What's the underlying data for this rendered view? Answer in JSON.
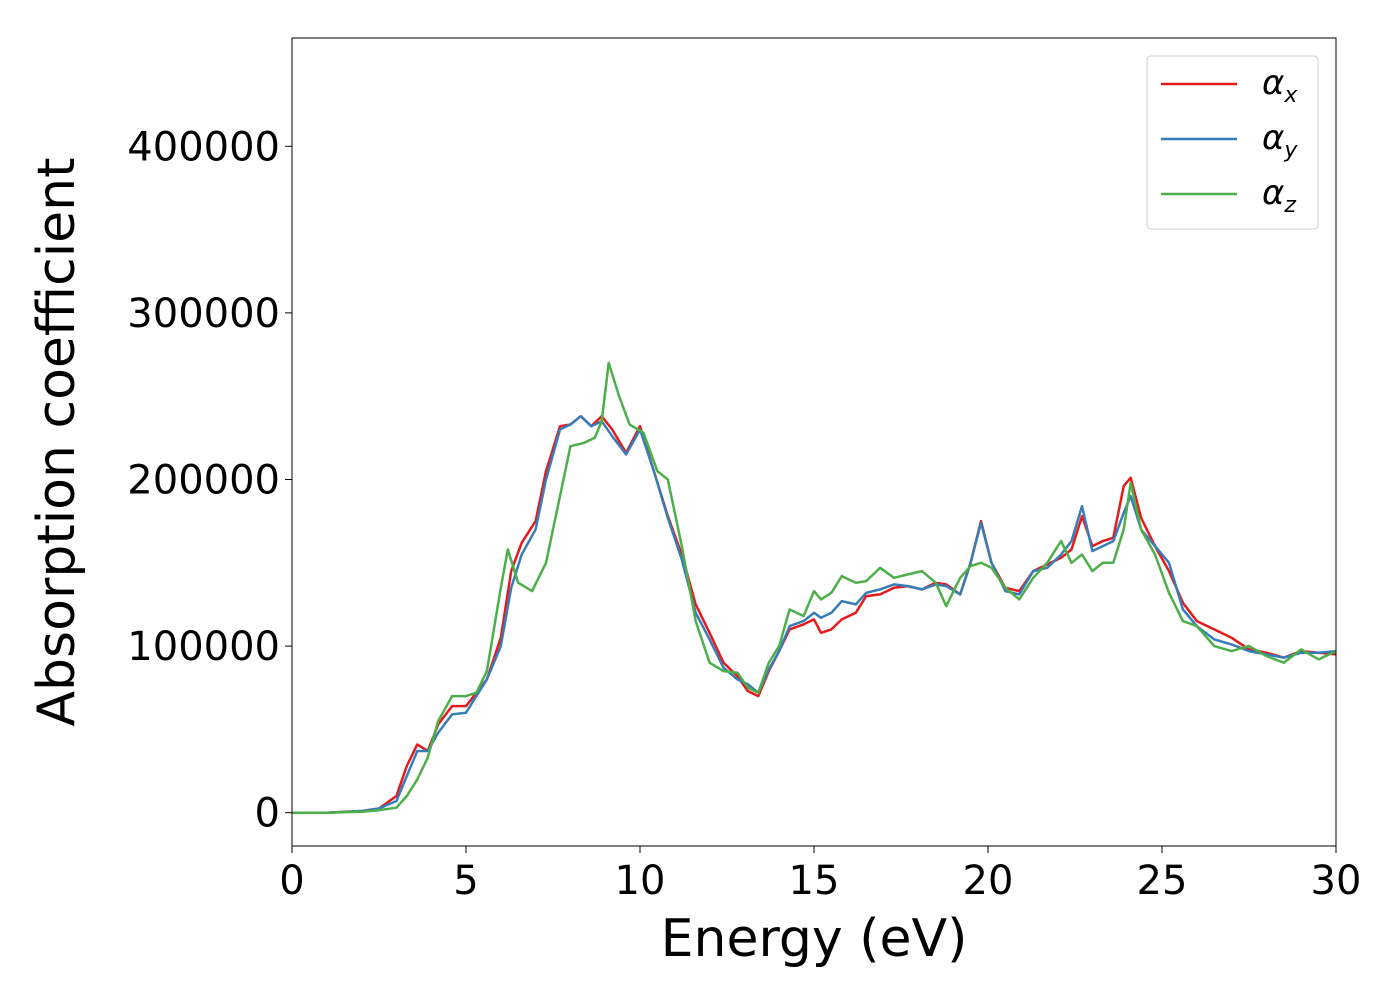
{
  "chart_data": {
    "type": "line",
    "title": "",
    "xlabel": "Energy (eV)",
    "ylabel": "Absorption coefficient",
    "xlim": [
      0,
      30
    ],
    "ylim": [
      -20000,
      465000
    ],
    "x_ticks": [
      0,
      5,
      10,
      15,
      20,
      25,
      30
    ],
    "y_ticks": [
      0,
      100000,
      200000,
      300000,
      400000
    ],
    "grid": false,
    "legend_position": "top-right",
    "series": [
      {
        "name": "αx",
        "name_base": "α",
        "name_sub": "x",
        "color": "#e41a1c",
        "points": [
          [
            0,
            0
          ],
          [
            1,
            0
          ],
          [
            2,
            1000
          ],
          [
            2.5,
            2500
          ],
          [
            3,
            10000
          ],
          [
            3.3,
            28000
          ],
          [
            3.6,
            41000
          ],
          [
            3.9,
            37000
          ],
          [
            4.2,
            53000
          ],
          [
            4.6,
            64000
          ],
          [
            5.0,
            64000
          ],
          [
            5.3,
            72000
          ],
          [
            5.6,
            80000
          ],
          [
            6.0,
            105000
          ],
          [
            6.3,
            145000
          ],
          [
            6.6,
            162000
          ],
          [
            7.0,
            175000
          ],
          [
            7.3,
            205000
          ],
          [
            7.7,
            232000
          ],
          [
            8.0,
            233000
          ],
          [
            8.3,
            238000
          ],
          [
            8.6,
            232000
          ],
          [
            8.9,
            238000
          ],
          [
            9.2,
            230000
          ],
          [
            9.6,
            216000
          ],
          [
            10.0,
            232000
          ],
          [
            10.4,
            205000
          ],
          [
            10.8,
            178000
          ],
          [
            11.2,
            155000
          ],
          [
            11.6,
            125000
          ],
          [
            12.0,
            108000
          ],
          [
            12.4,
            90000
          ],
          [
            12.8,
            82000
          ],
          [
            13.1,
            73000
          ],
          [
            13.4,
            70000
          ],
          [
            13.7,
            85000
          ],
          [
            14.0,
            97000
          ],
          [
            14.3,
            110000
          ],
          [
            14.7,
            113000
          ],
          [
            15.0,
            116000
          ],
          [
            15.2,
            108000
          ],
          [
            15.5,
            110000
          ],
          [
            15.8,
            116000
          ],
          [
            16.2,
            120000
          ],
          [
            16.5,
            130000
          ],
          [
            16.9,
            131000
          ],
          [
            17.3,
            135000
          ],
          [
            17.7,
            136000
          ],
          [
            18.1,
            134000
          ],
          [
            18.5,
            138000
          ],
          [
            18.8,
            137000
          ],
          [
            19.2,
            131000
          ],
          [
            19.5,
            150000
          ],
          [
            19.8,
            175000
          ],
          [
            20.1,
            150000
          ],
          [
            20.5,
            135000
          ],
          [
            20.9,
            133000
          ],
          [
            21.3,
            145000
          ],
          [
            21.7,
            149000
          ],
          [
            22.1,
            153000
          ],
          [
            22.4,
            158000
          ],
          [
            22.7,
            178000
          ],
          [
            23.0,
            160000
          ],
          [
            23.3,
            163000
          ],
          [
            23.6,
            165000
          ],
          [
            23.9,
            196000
          ],
          [
            24.1,
            201000
          ],
          [
            24.4,
            177000
          ],
          [
            24.8,
            160000
          ],
          [
            25.2,
            145000
          ],
          [
            25.6,
            126000
          ],
          [
            26.0,
            115000
          ],
          [
            26.5,
            110000
          ],
          [
            27.0,
            105000
          ],
          [
            27.5,
            98000
          ],
          [
            28.0,
            96000
          ],
          [
            28.5,
            93000
          ],
          [
            29.0,
            97000
          ],
          [
            29.5,
            96000
          ],
          [
            30.0,
            95000
          ]
        ]
      },
      {
        "name": "αy",
        "name_base": "α",
        "name_sub": "y",
        "color": "#377eb8",
        "points": [
          [
            0,
            0
          ],
          [
            1,
            0
          ],
          [
            2,
            1000
          ],
          [
            2.5,
            2500
          ],
          [
            3,
            7000
          ],
          [
            3.3,
            22000
          ],
          [
            3.6,
            37000
          ],
          [
            3.9,
            37000
          ],
          [
            4.2,
            48000
          ],
          [
            4.6,
            59000
          ],
          [
            5.0,
            60000
          ],
          [
            5.3,
            70000
          ],
          [
            5.6,
            80000
          ],
          [
            6.0,
            100000
          ],
          [
            6.3,
            135000
          ],
          [
            6.6,
            155000
          ],
          [
            7.0,
            170000
          ],
          [
            7.3,
            200000
          ],
          [
            7.7,
            230000
          ],
          [
            8.0,
            233000
          ],
          [
            8.3,
            238000
          ],
          [
            8.6,
            232000
          ],
          [
            8.9,
            235000
          ],
          [
            9.2,
            226000
          ],
          [
            9.6,
            215000
          ],
          [
            10.0,
            230000
          ],
          [
            10.4,
            205000
          ],
          [
            10.8,
            177000
          ],
          [
            11.2,
            152000
          ],
          [
            11.6,
            120000
          ],
          [
            12.0,
            104000
          ],
          [
            12.4,
            87000
          ],
          [
            12.8,
            80000
          ],
          [
            13.1,
            77000
          ],
          [
            13.4,
            72000
          ],
          [
            13.7,
            86000
          ],
          [
            14.0,
            97000
          ],
          [
            14.3,
            112000
          ],
          [
            14.7,
            115000
          ],
          [
            15.0,
            120000
          ],
          [
            15.2,
            117000
          ],
          [
            15.5,
            120000
          ],
          [
            15.8,
            127000
          ],
          [
            16.2,
            125000
          ],
          [
            16.5,
            132000
          ],
          [
            16.9,
            134000
          ],
          [
            17.3,
            137000
          ],
          [
            17.7,
            136000
          ],
          [
            18.1,
            134000
          ],
          [
            18.5,
            137000
          ],
          [
            18.8,
            136000
          ],
          [
            19.2,
            131000
          ],
          [
            19.5,
            150000
          ],
          [
            19.8,
            174000
          ],
          [
            20.1,
            150000
          ],
          [
            20.5,
            133000
          ],
          [
            20.9,
            131000
          ],
          [
            21.3,
            145000
          ],
          [
            21.7,
            147000
          ],
          [
            22.1,
            155000
          ],
          [
            22.4,
            163000
          ],
          [
            22.7,
            184000
          ],
          [
            23.0,
            157000
          ],
          [
            23.3,
            160000
          ],
          [
            23.6,
            163000
          ],
          [
            23.9,
            180000
          ],
          [
            24.1,
            190000
          ],
          [
            24.4,
            170000
          ],
          [
            24.8,
            160000
          ],
          [
            25.2,
            150000
          ],
          [
            25.6,
            122000
          ],
          [
            26.0,
            112000
          ],
          [
            26.5,
            104000
          ],
          [
            27.0,
            101000
          ],
          [
            27.5,
            97000
          ],
          [
            28.0,
            95000
          ],
          [
            28.5,
            93000
          ],
          [
            29.0,
            96000
          ],
          [
            29.5,
            96000
          ],
          [
            30.0,
            97000
          ]
        ]
      },
      {
        "name": "αz",
        "name_base": "α",
        "name_sub": "z",
        "color": "#4daf4a",
        "points": [
          [
            0,
            0
          ],
          [
            1,
            0
          ],
          [
            2,
            500
          ],
          [
            2.5,
            1500
          ],
          [
            3,
            3000
          ],
          [
            3.3,
            10000
          ],
          [
            3.6,
            20000
          ],
          [
            3.9,
            33000
          ],
          [
            4.2,
            55000
          ],
          [
            4.6,
            70000
          ],
          [
            5.0,
            70000
          ],
          [
            5.3,
            72000
          ],
          [
            5.6,
            85000
          ],
          [
            6.0,
            135000
          ],
          [
            6.2,
            158000
          ],
          [
            6.5,
            138000
          ],
          [
            6.9,
            133000
          ],
          [
            7.3,
            150000
          ],
          [
            7.7,
            190000
          ],
          [
            8.0,
            220000
          ],
          [
            8.4,
            222000
          ],
          [
            8.7,
            225000
          ],
          [
            8.9,
            235000
          ],
          [
            9.1,
            270000
          ],
          [
            9.4,
            250000
          ],
          [
            9.7,
            233000
          ],
          [
            10.1,
            228000
          ],
          [
            10.5,
            205000
          ],
          [
            10.8,
            200000
          ],
          [
            11.2,
            160000
          ],
          [
            11.6,
            115000
          ],
          [
            12.0,
            90000
          ],
          [
            12.4,
            85000
          ],
          [
            12.8,
            84000
          ],
          [
            13.1,
            75000
          ],
          [
            13.4,
            72000
          ],
          [
            13.7,
            90000
          ],
          [
            14.0,
            100000
          ],
          [
            14.3,
            122000
          ],
          [
            14.7,
            118000
          ],
          [
            15.0,
            133000
          ],
          [
            15.2,
            128000
          ],
          [
            15.5,
            132000
          ],
          [
            15.8,
            142000
          ],
          [
            16.2,
            138000
          ],
          [
            16.5,
            139000
          ],
          [
            16.9,
            147000
          ],
          [
            17.3,
            141000
          ],
          [
            17.7,
            143000
          ],
          [
            18.1,
            145000
          ],
          [
            18.5,
            138000
          ],
          [
            18.8,
            124000
          ],
          [
            19.2,
            141000
          ],
          [
            19.5,
            148000
          ],
          [
            19.8,
            150000
          ],
          [
            20.1,
            147000
          ],
          [
            20.5,
            135000
          ],
          [
            20.9,
            128000
          ],
          [
            21.3,
            141000
          ],
          [
            21.7,
            150000
          ],
          [
            22.1,
            163000
          ],
          [
            22.4,
            150000
          ],
          [
            22.7,
            155000
          ],
          [
            23.0,
            145000
          ],
          [
            23.3,
            150000
          ],
          [
            23.6,
            150000
          ],
          [
            23.9,
            170000
          ],
          [
            24.1,
            198000
          ],
          [
            24.4,
            170000
          ],
          [
            24.8,
            155000
          ],
          [
            25.2,
            132000
          ],
          [
            25.6,
            115000
          ],
          [
            26.0,
            112000
          ],
          [
            26.5,
            100000
          ],
          [
            27.0,
            97000
          ],
          [
            27.5,
            100000
          ],
          [
            28.0,
            94000
          ],
          [
            28.5,
            90000
          ],
          [
            29.0,
            98000
          ],
          [
            29.5,
            92000
          ],
          [
            30.0,
            97000
          ]
        ]
      }
    ]
  }
}
